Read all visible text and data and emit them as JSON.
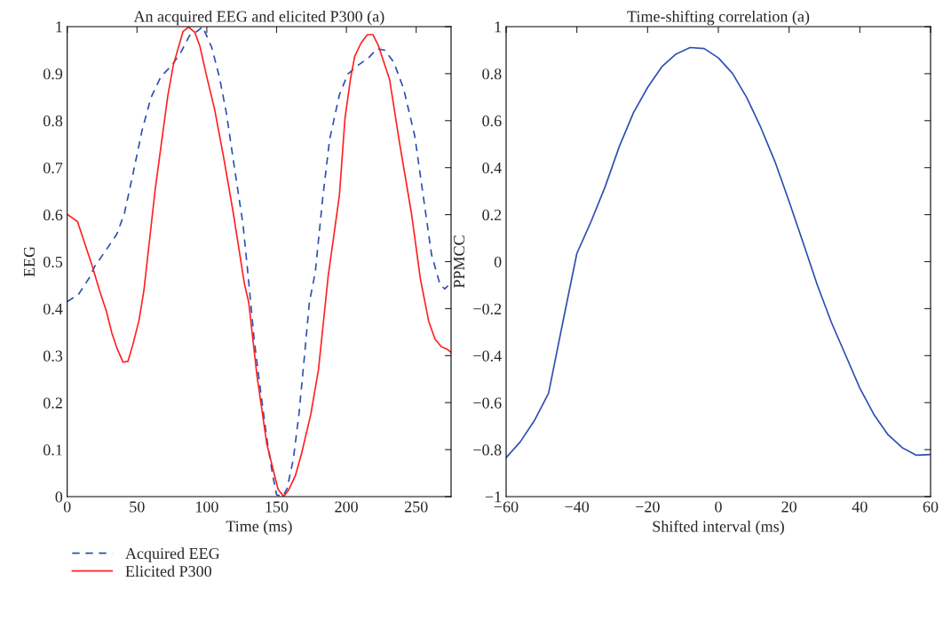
{
  "chart_data": [
    {
      "type": "line",
      "title": "An acquired EEG and elicited P300 (a)",
      "xlabel": "Time (ms)",
      "ylabel": "EEG",
      "xlim": [
        0,
        275
      ],
      "xticks": [
        0,
        50,
        100,
        150,
        200,
        250
      ],
      "ylim": [
        0,
        1
      ],
      "yticks": [
        0,
        0.1,
        0.2,
        0.3,
        0.4,
        0.5,
        0.6,
        0.7,
        0.8,
        0.9,
        1
      ],
      "grid": false,
      "legend": "bottom left",
      "series": [
        {
          "name": "Acquired EEG",
          "color": "#2e4fb0",
          "line_style": "dashed",
          "x": [
            0,
            8,
            15.5,
            19.7,
            27,
            35.6,
            41,
            47,
            53.6,
            60,
            67,
            75,
            81,
            87.6,
            93,
            97,
            103.5,
            109,
            114,
            119,
            126,
            130,
            134,
            138.5,
            143,
            147,
            150,
            154.4,
            157.5,
            162,
            166,
            170,
            173.5,
            177.7,
            183,
            188,
            195,
            201,
            208.4,
            216,
            222,
            227.5,
            234,
            241,
            249,
            255,
            261,
            267,
            270.4,
            275
          ],
          "values": [
            0.415,
            0.43,
            0.464,
            0.49,
            0.521,
            0.559,
            0.603,
            0.685,
            0.779,
            0.849,
            0.893,
            0.918,
            0.943,
            0.981,
            0.99,
            1.0,
            0.956,
            0.893,
            0.817,
            0.716,
            0.578,
            0.458,
            0.332,
            0.225,
            0.124,
            0.049,
            0.004,
            0.0,
            0.017,
            0.08,
            0.175,
            0.3,
            0.414,
            0.477,
            0.634,
            0.76,
            0.855,
            0.899,
            0.918,
            0.934,
            0.953,
            0.95,
            0.924,
            0.868,
            0.767,
            0.641,
            0.515,
            0.452,
            0.442,
            0.455
          ]
        },
        {
          "name": "Elicited P300",
          "color": "#ff2020",
          "line_style": "solid",
          "x": [
            0,
            7.4,
            18,
            23,
            28,
            32,
            36,
            40,
            43.5,
            47,
            51.5,
            55,
            63,
            72,
            76,
            83,
            87,
            91.4,
            95,
            100,
            105.6,
            112,
            119,
            127,
            130,
            136,
            143,
            151,
            155,
            158.6,
            163.5,
            168,
            174.5,
            180,
            183.5,
            187,
            195,
            199,
            203,
            206,
            210.5,
            215,
            219,
            223,
            231,
            238,
            246.6,
            253,
            255,
            259,
            263.5,
            268,
            272,
            275
          ],
          "values": [
            0.601,
            0.585,
            0.49,
            0.44,
            0.395,
            0.348,
            0.313,
            0.286,
            0.288,
            0.323,
            0.376,
            0.44,
            0.653,
            0.852,
            0.918,
            0.99,
            0.999,
            0.988,
            0.959,
            0.893,
            0.824,
            0.723,
            0.603,
            0.452,
            0.414,
            0.256,
            0.112,
            0.016,
            0.0,
            0.014,
            0.045,
            0.093,
            0.175,
            0.27,
            0.37,
            0.47,
            0.641,
            0.805,
            0.89,
            0.937,
            0.965,
            0.983,
            0.983,
            0.959,
            0.887,
            0.754,
            0.603,
            0.464,
            0.433,
            0.373,
            0.335,
            0.319,
            0.314,
            0.307
          ]
        }
      ]
    },
    {
      "type": "line",
      "title": "Time-shifting correlation (a)",
      "xlabel": "Shifted interval (ms)",
      "ylabel": "PPMCC",
      "xlim": [
        -60,
        60
      ],
      "xticks": [
        {
          "value": -60,
          "label": "−60"
        },
        {
          "value": -40,
          "label": "−40"
        },
        {
          "value": -20,
          "label": "−20"
        },
        0,
        20,
        40,
        60
      ],
      "ylim": [
        -1,
        1
      ],
      "yticks": [
        {
          "value": -1,
          "label": "−1"
        },
        {
          "value": -0.8,
          "label": "−0.8"
        },
        {
          "value": -0.6,
          "label": "−0.6"
        },
        {
          "value": -0.4,
          "label": "−0.4"
        },
        {
          "value": -0.2,
          "label": "−0.2"
        },
        0,
        0.2,
        0.4,
        0.6,
        0.8,
        1
      ],
      "grid": false,
      "series": [
        {
          "color": "#2e4fb0",
          "line_style": "solid",
          "x": [
            -60,
            -56,
            -52,
            -48,
            -44,
            -40,
            -36,
            -32,
            -28,
            -24,
            -20,
            -16,
            -12,
            -8,
            -4,
            0,
            4,
            8,
            12,
            16,
            20,
            24,
            28,
            32,
            36,
            40,
            44,
            48,
            52,
            56,
            60
          ],
          "values": [
            -0.834,
            -0.767,
            -0.676,
            -0.56,
            -0.26,
            0.035,
            0.17,
            0.319,
            0.49,
            0.634,
            0.741,
            0.829,
            0.883,
            0.911,
            0.907,
            0.867,
            0.801,
            0.699,
            0.571,
            0.426,
            0.256,
            0.079,
            -0.1,
            -0.26,
            -0.399,
            -0.538,
            -0.651,
            -0.737,
            -0.792,
            -0.824,
            -0.821
          ]
        }
      ]
    }
  ]
}
